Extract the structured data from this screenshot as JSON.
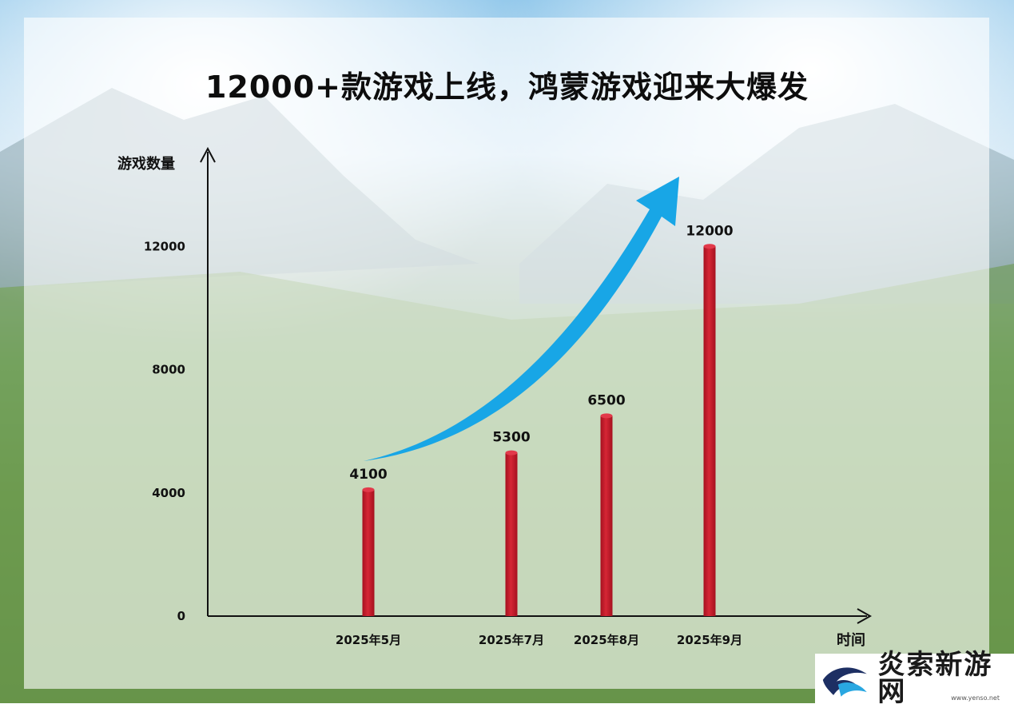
{
  "title": "12000+款游戏上线，鸿蒙游戏迎来大爆发",
  "watermark": {
    "name": "炎索新游网",
    "url": "www.yenso.net"
  },
  "chart_data": {
    "type": "bar",
    "categories": [
      "2025年5月",
      "2025年7月",
      "2025年8月",
      "2025年9月"
    ],
    "values": [
      4100,
      5300,
      6500,
      12000
    ],
    "ylabel": "游戏数量",
    "xlabel": "时间",
    "yticks": [
      0,
      4000,
      8000,
      12000
    ],
    "ylim": [
      0,
      16000
    ],
    "bar_color": "#c8202e",
    "arrow_color": "#18a6e6",
    "grid": false
  }
}
